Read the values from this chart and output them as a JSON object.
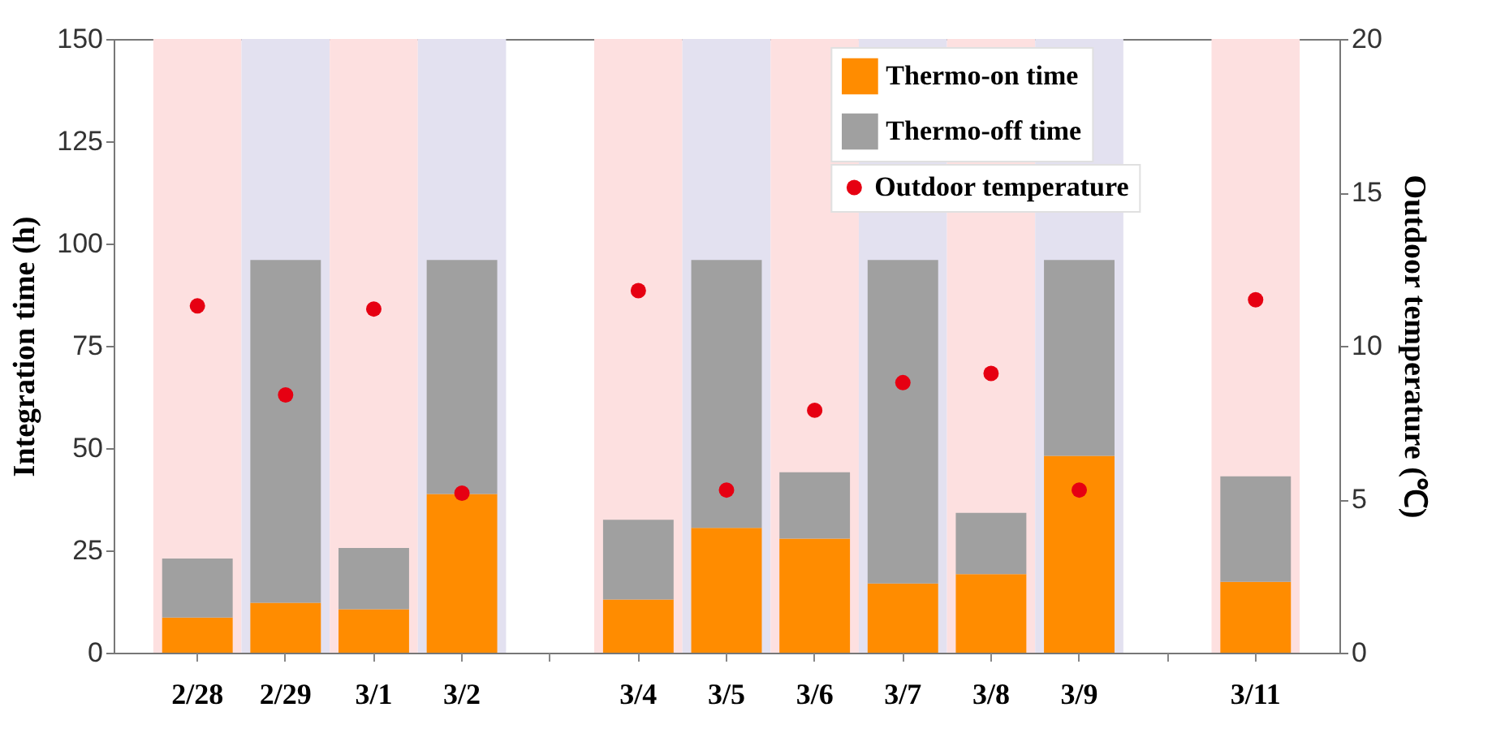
{
  "chart_data": {
    "type": "bar",
    "stacked": true,
    "xlabel": null,
    "ylabel": "Integration time (h)",
    "y2label": "Outdoor temperature (℃)",
    "categories": [
      "2/28",
      "2/29",
      "3/1",
      "3/2",
      null,
      "3/4",
      "3/5",
      "3/6",
      "3/7",
      "3/8",
      "3/9",
      null,
      "3/11"
    ],
    "series": [
      {
        "name": "Thermo-on time",
        "color": "#ff8c00",
        "values": [
          8.6,
          12.2,
          10.6,
          38.8,
          null,
          13.0,
          30.5,
          27.9,
          16.9,
          19.2,
          48.1,
          null,
          17.3
        ]
      },
      {
        "name": "Thermo-off time",
        "color": "#a0a0a0",
        "values": [
          14.4,
          83.8,
          15.0,
          57.2,
          null,
          19.5,
          65.5,
          16.2,
          79.1,
          15.0,
          47.9,
          null,
          25.8
        ]
      },
      {
        "name": "Outdoor temperature",
        "color": "#e60012",
        "type": "scatter",
        "axis": "y2",
        "marker": "circle",
        "values": [
          11.3,
          8.4,
          11.2,
          5.2,
          null,
          11.8,
          5.3,
          7.9,
          8.8,
          9.1,
          5.3,
          null,
          11.5
        ]
      }
    ],
    "ylim": [
      0,
      150
    ],
    "yticks": [
      0,
      25,
      50,
      75,
      100,
      125,
      150
    ],
    "y2lim": [
      0,
      20
    ],
    "y2ticks": [
      0,
      5,
      10,
      15,
      20
    ],
    "bands": [
      {
        "axis": "x",
        "from": "2/28",
        "to": "2/28",
        "color": "#fde0e0"
      },
      {
        "axis": "x",
        "from": "2/29",
        "to": "2/29",
        "color": "#e3e1f0"
      },
      {
        "axis": "x",
        "from": "3/1",
        "to": "3/1",
        "color": "#fde0e0"
      },
      {
        "axis": "x",
        "from": "3/2",
        "to": "3/2",
        "color": "#e3e1f0"
      },
      {
        "axis": "x",
        "from": "3/4",
        "to": "3/4",
        "color": "#fde0e0"
      },
      {
        "axis": "x",
        "from": "3/5",
        "to": "3/5",
        "color": "#e3e1f0"
      },
      {
        "axis": "x",
        "from": "3/6",
        "to": "3/6",
        "color": "#fde0e0"
      },
      {
        "axis": "x",
        "from": "3/7",
        "to": "3/7",
        "color": "#e3e1f0"
      },
      {
        "axis": "x",
        "from": "3/8",
        "to": "3/8",
        "color": "#fde0e0"
      },
      {
        "axis": "x",
        "from": "3/9",
        "to": "3/9",
        "color": "#e3e1f0"
      },
      {
        "axis": "x",
        "from": "3/11",
        "to": "3/11",
        "color": "#fde0e0"
      }
    ],
    "grid": false,
    "legend": "top right"
  }
}
